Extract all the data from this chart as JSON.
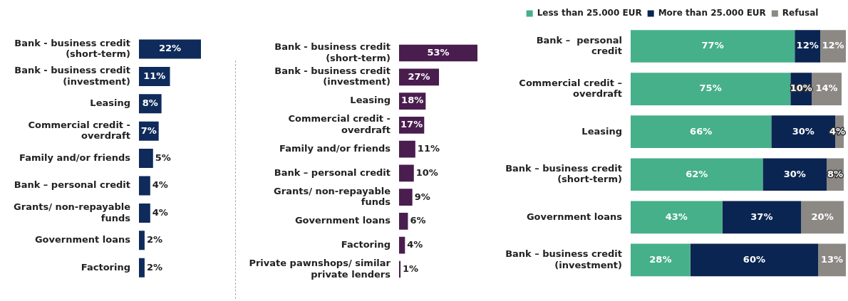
{
  "chart_data": [
    {
      "type": "bar",
      "orientation": "horizontal",
      "categories": [
        "Bank - business credit (short-term)",
        "Bank - business credit (investment)",
        "Leasing",
        "Commercial credit - overdraft",
        "Family and/or friends",
        "Bank – personal credit",
        "Grants/ non-repayable funds",
        "Government loans",
        "Factoring"
      ],
      "values": [
        22,
        11,
        8,
        7,
        5,
        4,
        4,
        2,
        2
      ],
      "value_labels": [
        "22%",
        "11%",
        "8%",
        "7%",
        "5%",
        "4%",
        "4%",
        "2%",
        "2%"
      ],
      "color": "#0f2b5b",
      "tick_labels": "y",
      "grid": false,
      "legend": false
    },
    {
      "type": "bar",
      "orientation": "horizontal",
      "categories": [
        "Bank - business credit (short-term)",
        "Bank - business credit (investment)",
        "Leasing",
        "Commercial credit - overdraft",
        "Family and/or friends",
        "Bank – personal credit",
        "Grants/ non-repayable funds",
        "Government loans",
        "Factoring",
        "Private pawnshops/ similar private lenders"
      ],
      "values": [
        53,
        27,
        18,
        17,
        11,
        10,
        9,
        6,
        4,
        1
      ],
      "value_labels": [
        "53%",
        "27%",
        "18%",
        "17%",
        "11%",
        "10%",
        "9%",
        "6%",
        "4%",
        "1%"
      ],
      "color": "#4a1d4f",
      "tick_labels": "y",
      "grid": false,
      "legend": false
    },
    {
      "type": "bar",
      "orientation": "horizontal",
      "stacked": true,
      "categories": [
        "Bank –  personal credit",
        "Commercial credit – overdraft",
        "Leasing",
        "Bank – business credit (short-term)",
        "Government loans",
        "Bank – business credit (investment)"
      ],
      "series": [
        {
          "name": "Less than 25.000 EUR",
          "color": "#46b08a",
          "values": [
            77,
            75,
            66,
            62,
            43,
            28
          ],
          "value_labels": [
            "77%",
            "75%",
            "66%",
            "62%",
            "43%",
            "28%"
          ]
        },
        {
          "name": "More than 25.000 EUR",
          "color": "#0b2552",
          "values": [
            12,
            10,
            30,
            30,
            37,
            60
          ],
          "value_labels": [
            "12%",
            "10%",
            "30%",
            "30%",
            "37%",
            "60%"
          ]
        },
        {
          "name": "Refusal",
          "color": "#8c8985",
          "values": [
            12,
            14,
            4,
            8,
            20,
            13
          ],
          "value_labels": [
            "12%",
            "14%",
            "4%",
            "8%",
            "20%",
            "13%"
          ]
        }
      ],
      "tick_labels": "y",
      "grid": false,
      "legend": "top"
    }
  ]
}
